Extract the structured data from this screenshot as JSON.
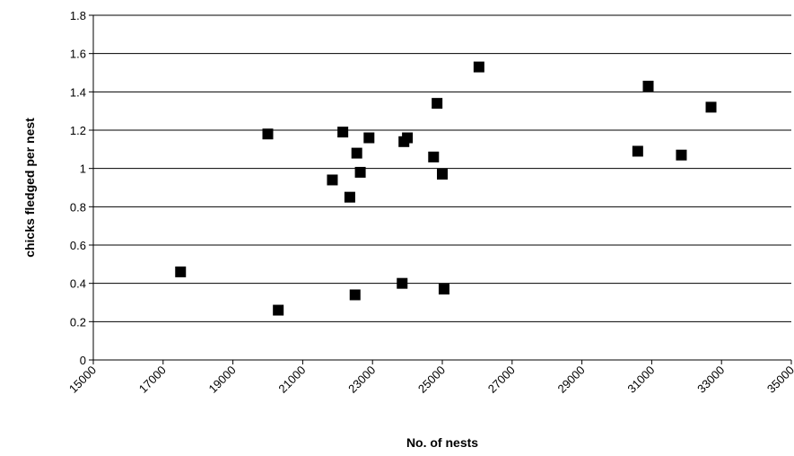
{
  "chart_data": {
    "type": "scatter",
    "xlabel": "No. of nests",
    "ylabel": "chicks fledged per nest",
    "series": [
      {
        "color": "#000000",
        "x": [
          17500,
          20000,
          20300,
          21850,
          22150,
          22350,
          22500,
          22550,
          22650,
          22900,
          23850,
          23900,
          24000,
          24750,
          24850,
          25000,
          25050,
          26050,
          30600,
          30900,
          31850,
          32700
        ],
        "values": [
          0.46,
          1.18,
          0.26,
          0.94,
          1.19,
          0.85,
          0.34,
          1.08,
          0.98,
          1.16,
          0.4,
          1.14,
          1.16,
          1.06,
          1.34,
          0.97,
          0.37,
          1.53,
          1.09,
          1.43,
          1.07,
          1.32
        ]
      }
    ],
    "xlim": [
      15000,
      35000
    ],
    "xticks": [
      15000,
      17000,
      19000,
      21000,
      23000,
      25000,
      27000,
      29000,
      31000,
      33000,
      35000
    ],
    "ylim": [
      0,
      1.8
    ],
    "yticks": [
      0,
      0.2,
      0.4,
      0.6,
      0.8,
      1,
      1.2,
      1.4,
      1.6,
      1.8
    ],
    "grid": true
  }
}
